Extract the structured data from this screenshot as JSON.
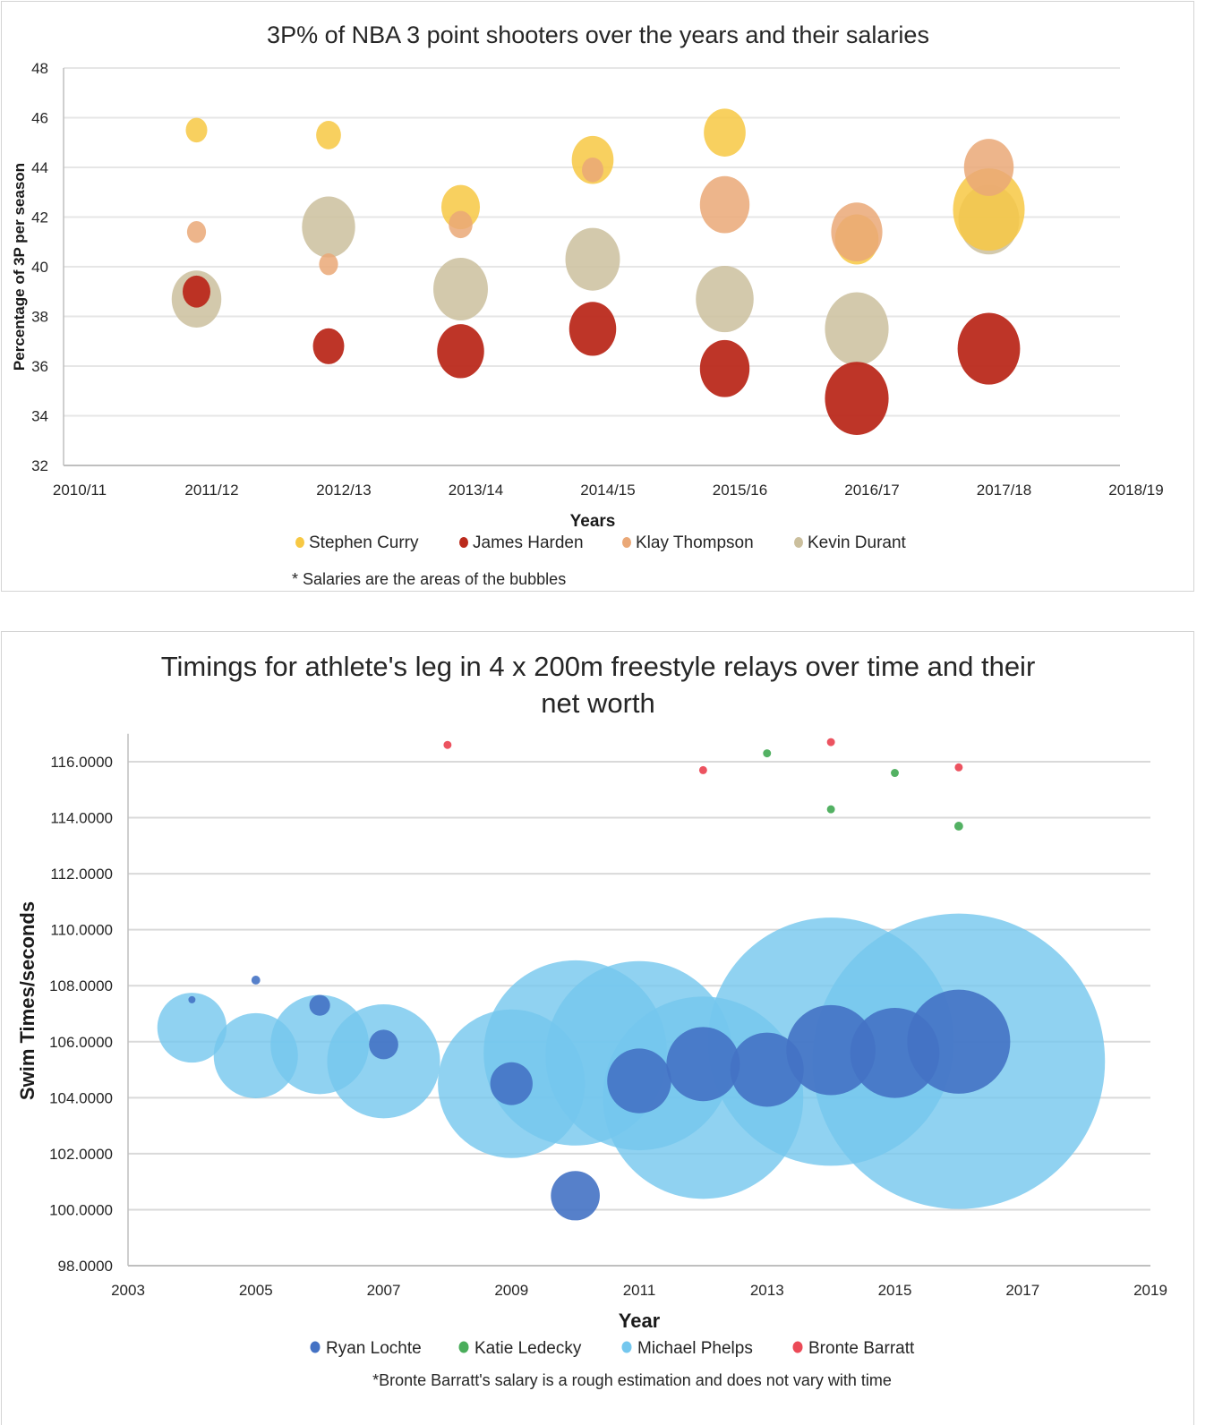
{
  "chart_data": [
    {
      "type": "bubble",
      "title": "3P% of NBA 3 point shooters over the years and their salaries",
      "xlabel": "Years",
      "ylabel": "Percentage of 3P per season",
      "categories": [
        "2010/11",
        "2011/12",
        "2012/13",
        "2013/14",
        "2014/15",
        "2015/16",
        "2016/17",
        "2017/18",
        "2018/19"
      ],
      "yticks": [
        "32",
        "34",
        "36",
        "38",
        "40",
        "42",
        "44",
        "46",
        "48"
      ],
      "ylim": [
        32,
        48
      ],
      "grid": true,
      "legend_position": "bottom",
      "note": "* Salaries are the areas of the bubbles",
      "series": [
        {
          "name": "Stephen Curry",
          "color": "#f7c843",
          "points": [
            {
              "x": "2011/12",
              "y": 45.5,
              "size": 0.09
            },
            {
              "x": "2012/13",
              "y": 45.3,
              "size": 0.12
            },
            {
              "x": "2013/14",
              "y": 42.4,
              "size": 0.29
            },
            {
              "x": "2014/15",
              "y": 44.3,
              "size": 0.34
            },
            {
              "x": "2015/16",
              "y": 45.4,
              "size": 0.34
            },
            {
              "x": "2016/17",
              "y": 41.1,
              "size": 0.37
            },
            {
              "x": "2017/18",
              "y": 42.3,
              "size": 1.0
            }
          ]
        },
        {
          "name": "James Harden",
          "color": "#bb2a1c",
          "points": [
            {
              "x": "2011/12",
              "y": 39.0,
              "size": 0.15
            },
            {
              "x": "2012/13",
              "y": 36.8,
              "size": 0.19
            },
            {
              "x": "2013/14",
              "y": 36.6,
              "size": 0.43
            },
            {
              "x": "2014/15",
              "y": 37.5,
              "size": 0.43
            },
            {
              "x": "2015/16",
              "y": 35.9,
              "size": 0.48
            },
            {
              "x": "2016/17",
              "y": 34.7,
              "size": 0.79
            },
            {
              "x": "2017/18",
              "y": 36.7,
              "size": 0.76
            }
          ]
        },
        {
          "name": "Klay Thompson",
          "color": "#eaa877",
          "points": [
            {
              "x": "2011/12",
              "y": 41.4,
              "size": 0.07
            },
            {
              "x": "2012/13",
              "y": 40.1,
              "size": 0.07
            },
            {
              "x": "2013/14",
              "y": 41.7,
              "size": 0.11
            },
            {
              "x": "2014/15",
              "y": 43.9,
              "size": 0.09
            },
            {
              "x": "2015/16",
              "y": 42.5,
              "size": 0.48
            },
            {
              "x": "2016/17",
              "y": 41.4,
              "size": 0.51
            },
            {
              "x": "2017/18",
              "y": 44.0,
              "size": 0.48
            }
          ]
        },
        {
          "name": "Kevin Durant",
          "color": "#cbbf9d",
          "points": [
            {
              "x": "2011/12",
              "y": 38.7,
              "size": 0.48
            },
            {
              "x": "2012/13",
              "y": 41.6,
              "size": 0.55
            },
            {
              "x": "2013/14",
              "y": 39.1,
              "size": 0.58
            },
            {
              "x": "2014/15",
              "y": 40.3,
              "size": 0.58
            },
            {
              "x": "2015/16",
              "y": 38.7,
              "size": 0.65
            },
            {
              "x": "2016/17",
              "y": 37.5,
              "size": 0.79
            },
            {
              "x": "2017/18",
              "y": 41.9,
              "size": 0.72
            }
          ]
        }
      ]
    },
    {
      "type": "bubble",
      "title_lines": [
        "Timings for athlete's leg in 4 x 200m freestyle relays over time and their",
        "net worth"
      ],
      "xlabel": "Year",
      "ylabel": "Swim Times/seconds",
      "xticks": [
        "2003",
        "2005",
        "2007",
        "2009",
        "2011",
        "2013",
        "2015",
        "2017",
        "2019"
      ],
      "xlim": [
        2003,
        2019
      ],
      "yticks": [
        "98.0000",
        "100.0000",
        "102.0000",
        "104.0000",
        "106.0000",
        "108.0000",
        "110.0000",
        "112.0000",
        "114.0000",
        "116.0000"
      ],
      "ylim": [
        98,
        117
      ],
      "grid": true,
      "legend_position": "bottom",
      "note": "*Bronte Barratt's salary is a rough estimation and does not vary with time",
      "series": [
        {
          "name": "Ryan Lochte",
          "color": "#4472c4",
          "points": [
            {
              "x": 2004,
              "y": 107.5,
              "size": 0.0004
            },
            {
              "x": 2005,
              "y": 108.2,
              "size": 0.0009
            },
            {
              "x": 2006,
              "y": 107.3,
              "size": 0.005
            },
            {
              "x": 2007,
              "y": 105.9,
              "size": 0.01
            },
            {
              "x": 2009,
              "y": 104.5,
              "size": 0.021
            },
            {
              "x": 2010,
              "y": 100.5,
              "size": 0.028
            },
            {
              "x": 2011,
              "y": 104.6,
              "size": 0.048
            },
            {
              "x": 2012,
              "y": 105.2,
              "size": 0.063
            },
            {
              "x": 2013,
              "y": 105.0,
              "size": 0.063
            },
            {
              "x": 2014,
              "y": 105.7,
              "size": 0.093
            },
            {
              "x": 2015,
              "y": 105.6,
              "size": 0.093
            },
            {
              "x": 2016,
              "y": 106.0,
              "size": 0.124
            }
          ]
        },
        {
          "name": "Katie Ledecky",
          "color": "#4aad5b",
          "points": [
            {
              "x": 2013,
              "y": 116.3,
              "size": 0.0003
            },
            {
              "x": 2014,
              "y": 114.3,
              "size": 0.0003
            },
            {
              "x": 2015,
              "y": 115.6,
              "size": 0.0003
            },
            {
              "x": 2016,
              "y": 113.7,
              "size": 0.0009
            }
          ]
        },
        {
          "name": "Michael Phelps",
          "color": "#74c7ee",
          "points": [
            {
              "x": 2004,
              "y": 106.5,
              "size": 0.056
            },
            {
              "x": 2005,
              "y": 105.5,
              "size": 0.083
            },
            {
              "x": 2006,
              "y": 105.9,
              "size": 0.113
            },
            {
              "x": 2007,
              "y": 105.3,
              "size": 0.149
            },
            {
              "x": 2009,
              "y": 104.5,
              "size": 0.253
            },
            {
              "x": 2010,
              "y": 105.6,
              "size": 0.393
            },
            {
              "x": 2011,
              "y": 105.5,
              "size": 0.41
            },
            {
              "x": 2012,
              "y": 104.0,
              "size": 0.469
            },
            {
              "x": 2014,
              "y": 106.0,
              "size": 0.706
            },
            {
              "x": 2016,
              "y": 105.3,
              "size": 1.0
            }
          ]
        },
        {
          "name": "Bronte Barratt",
          "color": "#eb4a57",
          "points": [
            {
              "x": 2008,
              "y": 116.6,
              "size": 0.0004
            },
            {
              "x": 2012,
              "y": 115.7,
              "size": 0.0004
            },
            {
              "x": 2014,
              "y": 116.7,
              "size": 0.0004
            },
            {
              "x": 2016,
              "y": 115.8,
              "size": 0.0004
            }
          ]
        }
      ]
    }
  ]
}
